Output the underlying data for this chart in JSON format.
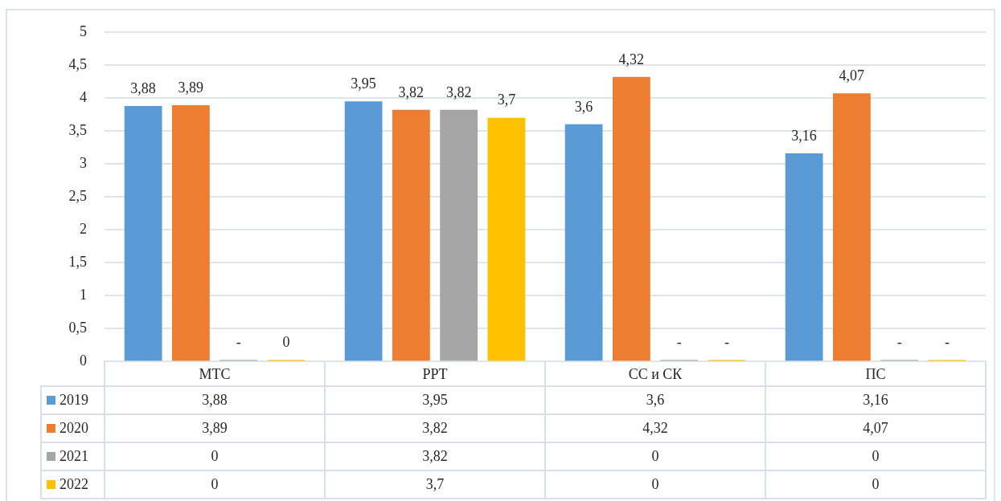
{
  "chart_data": {
    "type": "bar",
    "categories": [
      "МТС",
      "РРТ",
      "СС и СК",
      "ПС"
    ],
    "series": [
      {
        "name": "2019",
        "color": "#5b9bd5",
        "values": [
          3.88,
          3.95,
          3.6,
          3.16
        ],
        "value_labels": [
          "3,88",
          "3,95",
          "3,6",
          "3,16"
        ]
      },
      {
        "name": "2020",
        "color": "#ed7d31",
        "values": [
          3.89,
          3.82,
          4.32,
          4.07
        ],
        "value_labels": [
          "3,89",
          "3,82",
          "4,32",
          "4,07"
        ]
      },
      {
        "name": "2021",
        "color": "#a5a5a5",
        "values": [
          0,
          3.82,
          0,
          0
        ],
        "value_labels": [
          "-",
          "3,82",
          "-",
          "-"
        ]
      },
      {
        "name": "2022",
        "color": "#ffc000",
        "values": [
          0,
          3.7,
          0,
          0
        ],
        "value_labels": [
          "0",
          "3,7",
          "-",
          "-"
        ]
      }
    ],
    "ylim": [
      0,
      5
    ],
    "yticks": [
      0,
      {
        "value": 0.5,
        "label": "0,5"
      },
      1,
      {
        "value": 1.5,
        "label": "1,5"
      },
      2,
      {
        "value": 2.5,
        "label": "2,5"
      },
      3,
      {
        "value": 3.5,
        "label": "3,5"
      },
      4,
      {
        "value": 4.5,
        "label": "4,5"
      },
      5
    ],
    "grid": "y",
    "legend": "bottom",
    "annotations": [
      "3,88",
      "3,95",
      "3,6",
      "3,16",
      "3,89",
      "3,82",
      "4,32",
      "4,07",
      "0",
      "3,82",
      "0",
      "0",
      "0",
      "3,7",
      "0",
      "0"
    ]
  }
}
